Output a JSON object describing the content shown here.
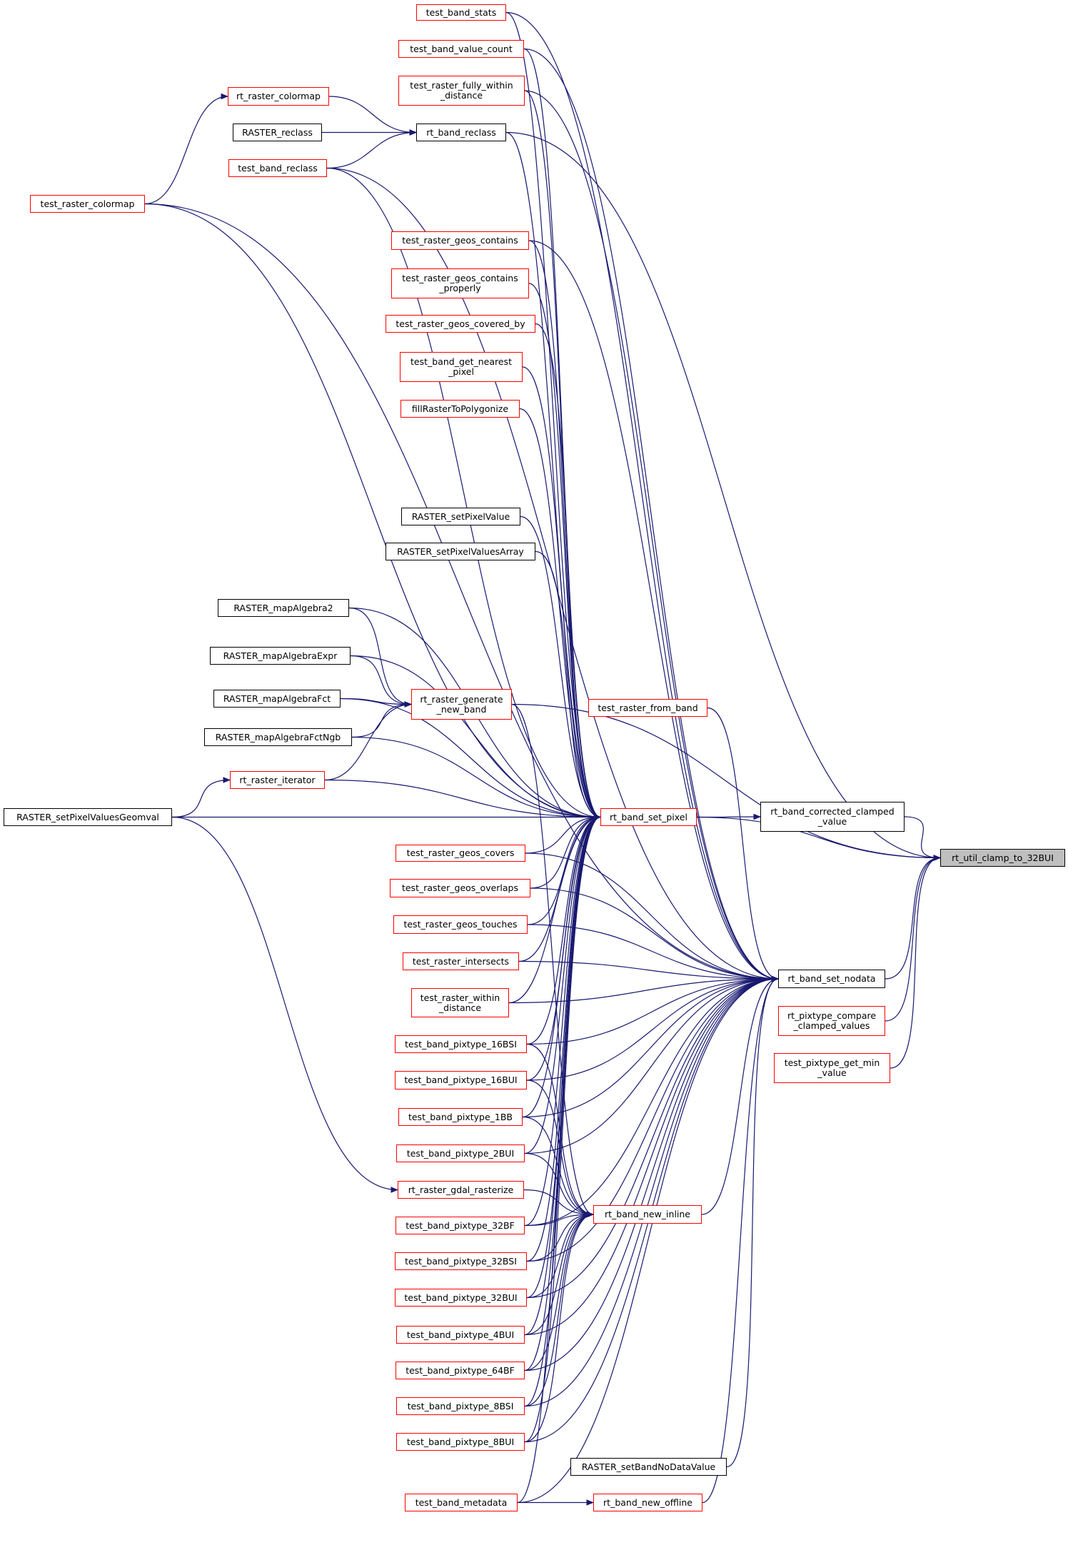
{
  "colors": {
    "edge": "#191970",
    "border_documented": "#ff0000",
    "border_plain": "#000000",
    "focus_fill": "#bfbfbf"
  },
  "nodes": [
    {
      "id": "test_band_stats",
      "lines": [
        "test_band_stats"
      ],
      "style": "red"
    },
    {
      "id": "test_band_value_count",
      "lines": [
        "test_band_value_count"
      ],
      "style": "red"
    },
    {
      "id": "test_raster_fully_within_distance",
      "lines": [
        "test_raster_fully_within",
        "_distance"
      ],
      "style": "red"
    },
    {
      "id": "rt_raster_colormap",
      "lines": [
        "rt_raster_colormap"
      ],
      "style": "red"
    },
    {
      "id": "RASTER_reclass",
      "lines": [
        "RASTER_reclass"
      ],
      "style": "black"
    },
    {
      "id": "rt_band_reclass",
      "lines": [
        "rt_band_reclass"
      ],
      "style": "black"
    },
    {
      "id": "test_band_reclass",
      "lines": [
        "test_band_reclass"
      ],
      "style": "red"
    },
    {
      "id": "test_raster_colormap",
      "lines": [
        "test_raster_colormap"
      ],
      "style": "red"
    },
    {
      "id": "test_raster_geos_contains",
      "lines": [
        "test_raster_geos_contains"
      ],
      "style": "red"
    },
    {
      "id": "test_raster_geos_contains_properly",
      "lines": [
        "test_raster_geos_contains",
        "_properly"
      ],
      "style": "red"
    },
    {
      "id": "test_raster_geos_covered_by",
      "lines": [
        "test_raster_geos_covered_by"
      ],
      "style": "red"
    },
    {
      "id": "test_band_get_nearest_pixel",
      "lines": [
        "test_band_get_nearest",
        "_pixel"
      ],
      "style": "red"
    },
    {
      "id": "fillRasterToPolygonize",
      "lines": [
        "fillRasterToPolygonize"
      ],
      "style": "red"
    },
    {
      "id": "RASTER_setPixelValue",
      "lines": [
        "RASTER_setPixelValue"
      ],
      "style": "black"
    },
    {
      "id": "RASTER_setPixelValuesArray",
      "lines": [
        "RASTER_setPixelValuesArray"
      ],
      "style": "black"
    },
    {
      "id": "RASTER_mapAlgebra2",
      "lines": [
        "RASTER_mapAlgebra2"
      ],
      "style": "black"
    },
    {
      "id": "RASTER_mapAlgebraExpr",
      "lines": [
        "RASTER_mapAlgebraExpr"
      ],
      "style": "black"
    },
    {
      "id": "RASTER_mapAlgebraFct",
      "lines": [
        "RASTER_mapAlgebraFct"
      ],
      "style": "black"
    },
    {
      "id": "RASTER_mapAlgebraFctNgb",
      "lines": [
        "RASTER_mapAlgebraFctNgb"
      ],
      "style": "black"
    },
    {
      "id": "rt_raster_generate_new_band",
      "lines": [
        "rt_raster_generate",
        "_new_band"
      ],
      "style": "red"
    },
    {
      "id": "test_raster_from_band",
      "lines": [
        "test_raster_from_band"
      ],
      "style": "red"
    },
    {
      "id": "rt_raster_iterator",
      "lines": [
        "rt_raster_iterator"
      ],
      "style": "red"
    },
    {
      "id": "RASTER_setPixelValuesGeomval",
      "lines": [
        "RASTER_setPixelValuesGeomval"
      ],
      "style": "black"
    },
    {
      "id": "rt_band_set_pixel",
      "lines": [
        "rt_band_set_pixel"
      ],
      "style": "red"
    },
    {
      "id": "rt_band_corrected_clamped_value",
      "lines": [
        "rt_band_corrected_clamped",
        "_value"
      ],
      "style": "black"
    },
    {
      "id": "rt_util_clamp_to_32BUI",
      "lines": [
        "rt_util_clamp_to_32BUI"
      ],
      "style": "focus"
    },
    {
      "id": "test_raster_geos_covers",
      "lines": [
        "test_raster_geos_covers"
      ],
      "style": "red"
    },
    {
      "id": "test_raster_geos_overlaps",
      "lines": [
        "test_raster_geos_overlaps"
      ],
      "style": "red"
    },
    {
      "id": "test_raster_geos_touches",
      "lines": [
        "test_raster_geos_touches"
      ],
      "style": "red"
    },
    {
      "id": "test_raster_intersects",
      "lines": [
        "test_raster_intersects"
      ],
      "style": "red"
    },
    {
      "id": "rt_band_set_nodata",
      "lines": [
        "rt_band_set_nodata"
      ],
      "style": "black"
    },
    {
      "id": "test_raster_within_distance",
      "lines": [
        "test_raster_within",
        "_distance"
      ],
      "style": "red"
    },
    {
      "id": "rt_pixtype_compare_clamped_values",
      "lines": [
        "rt_pixtype_compare",
        "_clamped_values"
      ],
      "style": "red"
    },
    {
      "id": "test_pixtype_get_min_value",
      "lines": [
        "test_pixtype_get_min",
        "_value"
      ],
      "style": "red"
    },
    {
      "id": "test_band_pixtype_16BSI",
      "lines": [
        "test_band_pixtype_16BSI"
      ],
      "style": "red"
    },
    {
      "id": "test_band_pixtype_16BUI",
      "lines": [
        "test_band_pixtype_16BUI"
      ],
      "style": "red"
    },
    {
      "id": "test_band_pixtype_1BB",
      "lines": [
        "test_band_pixtype_1BB"
      ],
      "style": "red"
    },
    {
      "id": "test_band_pixtype_2BUI",
      "lines": [
        "test_band_pixtype_2BUI"
      ],
      "style": "red"
    },
    {
      "id": "rt_raster_gdal_rasterize",
      "lines": [
        "rt_raster_gdal_rasterize"
      ],
      "style": "red"
    },
    {
      "id": "rt_band_new_inline",
      "lines": [
        "rt_band_new_inline"
      ],
      "style": "red"
    },
    {
      "id": "test_band_pixtype_32BF",
      "lines": [
        "test_band_pixtype_32BF"
      ],
      "style": "red"
    },
    {
      "id": "test_band_pixtype_32BSI",
      "lines": [
        "test_band_pixtype_32BSI"
      ],
      "style": "red"
    },
    {
      "id": "test_band_pixtype_32BUI",
      "lines": [
        "test_band_pixtype_32BUI"
      ],
      "style": "red"
    },
    {
      "id": "test_band_pixtype_4BUI",
      "lines": [
        "test_band_pixtype_4BUI"
      ],
      "style": "red"
    },
    {
      "id": "test_band_pixtype_64BF",
      "lines": [
        "test_band_pixtype_64BF"
      ],
      "style": "red"
    },
    {
      "id": "test_band_pixtype_8BSI",
      "lines": [
        "test_band_pixtype_8BSI"
      ],
      "style": "red"
    },
    {
      "id": "test_band_pixtype_8BUI",
      "lines": [
        "test_band_pixtype_8BUI"
      ],
      "style": "red"
    },
    {
      "id": "RASTER_setBandNoDataValue",
      "lines": [
        "RASTER_setBandNoDataValue"
      ],
      "style": "black"
    },
    {
      "id": "test_band_metadata",
      "lines": [
        "test_band_metadata"
      ],
      "style": "red"
    },
    {
      "id": "rt_band_new_offline",
      "lines": [
        "rt_band_new_offline"
      ],
      "style": "red"
    }
  ],
  "edges": [
    [
      "test_raster_colormap",
      "rt_raster_colormap"
    ],
    [
      "rt_raster_colormap",
      "rt_band_reclass"
    ],
    [
      "RASTER_reclass",
      "rt_band_reclass"
    ],
    [
      "test_band_reclass",
      "rt_band_reclass"
    ],
    [
      "rt_band_reclass",
      "rt_band_set_pixel"
    ],
    [
      "rt_band_reclass",
      "rt_util_clamp_to_32BUI"
    ],
    [
      "test_band_reclass",
      "rt_band_set_pixel"
    ],
    [
      "test_band_reclass",
      "rt_band_set_nodata"
    ],
    [
      "test_raster_colormap",
      "rt_band_set_pixel"
    ],
    [
      "test_raster_colormap",
      "rt_band_set_nodata"
    ],
    [
      "test_band_stats",
      "rt_band_set_pixel"
    ],
    [
      "test_band_stats",
      "rt_band_set_nodata"
    ],
    [
      "test_band_value_count",
      "rt_band_set_pixel"
    ],
    [
      "test_band_value_count",
      "rt_band_set_nodata"
    ],
    [
      "test_raster_fully_within_distance",
      "rt_band_set_pixel"
    ],
    [
      "test_raster_fully_within_distance",
      "rt_band_set_nodata"
    ],
    [
      "test_raster_geos_contains",
      "rt_band_set_pixel"
    ],
    [
      "test_raster_geos_contains",
      "rt_band_set_nodata"
    ],
    [
      "test_raster_geos_contains_properly",
      "rt_band_set_pixel"
    ],
    [
      "test_raster_geos_covered_by",
      "rt_band_set_pixel"
    ],
    [
      "test_band_get_nearest_pixel",
      "rt_band_set_pixel"
    ],
    [
      "fillRasterToPolygonize",
      "rt_band_set_pixel"
    ],
    [
      "RASTER_setPixelValue",
      "rt_band_set_pixel"
    ],
    [
      "RASTER_setPixelValuesArray",
      "rt_band_set_pixel"
    ],
    [
      "RASTER_mapAlgebra2",
      "rt_raster_generate_new_band"
    ],
    [
      "RASTER_mapAlgebra2",
      "rt_band_set_pixel"
    ],
    [
      "RASTER_mapAlgebraExpr",
      "rt_raster_generate_new_band"
    ],
    [
      "RASTER_mapAlgebraExpr",
      "rt_band_set_pixel"
    ],
    [
      "RASTER_mapAlgebraFct",
      "rt_raster_generate_new_band"
    ],
    [
      "RASTER_mapAlgebraFct",
      "rt_band_set_pixel"
    ],
    [
      "RASTER_mapAlgebraFctNgb",
      "rt_raster_generate_new_band"
    ],
    [
      "RASTER_mapAlgebraFctNgb",
      "rt_band_set_pixel"
    ],
    [
      "rt_raster_iterator",
      "rt_raster_generate_new_band"
    ],
    [
      "rt_raster_iterator",
      "rt_band_set_pixel"
    ],
    [
      "rt_raster_generate_new_band",
      "rt_band_new_inline"
    ],
    [
      "rt_raster_generate_new_band",
      "rt_util_clamp_to_32BUI"
    ],
    [
      "RASTER_setPixelValuesGeomval",
      "rt_raster_iterator"
    ],
    [
      "RASTER_setPixelValuesGeomval",
      "rt_band_set_pixel"
    ],
    [
      "RASTER_setPixelValuesGeomval",
      "rt_raster_gdal_rasterize"
    ],
    [
      "test_raster_from_band",
      "rt_band_set_nodata"
    ],
    [
      "rt_band_set_pixel",
      "rt_band_corrected_clamped_value"
    ],
    [
      "rt_band_set_pixel",
      "rt_util_clamp_to_32BUI"
    ],
    [
      "rt_band_corrected_clamped_value",
      "rt_util_clamp_to_32BUI"
    ],
    [
      "rt_band_set_nodata",
      "rt_util_clamp_to_32BUI"
    ],
    [
      "rt_pixtype_compare_clamped_values",
      "rt_util_clamp_to_32BUI"
    ],
    [
      "test_pixtype_get_min_value",
      "rt_util_clamp_to_32BUI"
    ],
    [
      "test_raster_geos_covers",
      "rt_band_set_pixel"
    ],
    [
      "test_raster_geos_covers",
      "rt_band_set_nodata"
    ],
    [
      "test_raster_geos_overlaps",
      "rt_band_set_pixel"
    ],
    [
      "test_raster_geos_overlaps",
      "rt_band_set_nodata"
    ],
    [
      "test_raster_geos_touches",
      "rt_band_set_pixel"
    ],
    [
      "test_raster_geos_touches",
      "rt_band_set_nodata"
    ],
    [
      "test_raster_intersects",
      "rt_band_set_pixel"
    ],
    [
      "test_raster_intersects",
      "rt_band_set_nodata"
    ],
    [
      "test_raster_within_distance",
      "rt_band_set_pixel"
    ],
    [
      "test_raster_within_distance",
      "rt_band_set_nodata"
    ],
    [
      "test_band_pixtype_16BSI",
      "rt_band_set_pixel"
    ],
    [
      "test_band_pixtype_16BSI",
      "rt_band_set_nodata"
    ],
    [
      "test_band_pixtype_16BSI",
      "rt_band_new_inline"
    ],
    [
      "test_band_pixtype_16BUI",
      "rt_band_set_pixel"
    ],
    [
      "test_band_pixtype_16BUI",
      "rt_band_set_nodata"
    ],
    [
      "test_band_pixtype_16BUI",
      "rt_band_new_inline"
    ],
    [
      "test_band_pixtype_1BB",
      "rt_band_set_pixel"
    ],
    [
      "test_band_pixtype_1BB",
      "rt_band_set_nodata"
    ],
    [
      "test_band_pixtype_1BB",
      "rt_band_new_inline"
    ],
    [
      "test_band_pixtype_2BUI",
      "rt_band_set_pixel"
    ],
    [
      "test_band_pixtype_2BUI",
      "rt_band_set_nodata"
    ],
    [
      "test_band_pixtype_2BUI",
      "rt_band_new_inline"
    ],
    [
      "rt_raster_gdal_rasterize",
      "rt_band_new_inline"
    ],
    [
      "test_band_pixtype_32BF",
      "rt_band_set_pixel"
    ],
    [
      "test_band_pixtype_32BF",
      "rt_band_set_nodata"
    ],
    [
      "test_band_pixtype_32BF",
      "rt_band_new_inline"
    ],
    [
      "test_band_pixtype_32BSI",
      "rt_band_set_pixel"
    ],
    [
      "test_band_pixtype_32BSI",
      "rt_band_set_nodata"
    ],
    [
      "test_band_pixtype_32BSI",
      "rt_band_new_inline"
    ],
    [
      "test_band_pixtype_32BUI",
      "rt_band_set_pixel"
    ],
    [
      "test_band_pixtype_32BUI",
      "rt_band_set_nodata"
    ],
    [
      "test_band_pixtype_32BUI",
      "rt_band_new_inline"
    ],
    [
      "test_band_pixtype_4BUI",
      "rt_band_set_pixel"
    ],
    [
      "test_band_pixtype_4BUI",
      "rt_band_set_nodata"
    ],
    [
      "test_band_pixtype_4BUI",
      "rt_band_new_inline"
    ],
    [
      "test_band_pixtype_64BF",
      "rt_band_set_pixel"
    ],
    [
      "test_band_pixtype_64BF",
      "rt_band_set_nodata"
    ],
    [
      "test_band_pixtype_64BF",
      "rt_band_new_inline"
    ],
    [
      "test_band_pixtype_8BSI",
      "rt_band_set_pixel"
    ],
    [
      "test_band_pixtype_8BSI",
      "rt_band_set_nodata"
    ],
    [
      "test_band_pixtype_8BSI",
      "rt_band_new_inline"
    ],
    [
      "test_band_pixtype_8BUI",
      "rt_band_set_pixel"
    ],
    [
      "test_band_pixtype_8BUI",
      "rt_band_set_nodata"
    ],
    [
      "test_band_pixtype_8BUI",
      "rt_band_new_inline"
    ],
    [
      "rt_band_new_inline",
      "rt_band_set_nodata"
    ],
    [
      "RASTER_setBandNoDataValue",
      "rt_band_set_nodata"
    ],
    [
      "test_band_metadata",
      "rt_band_new_offline"
    ],
    [
      "test_band_metadata",
      "rt_band_set_pixel"
    ],
    [
      "test_band_metadata",
      "rt_band_set_nodata"
    ],
    [
      "rt_band_new_offline",
      "rt_band_set_nodata"
    ]
  ]
}
